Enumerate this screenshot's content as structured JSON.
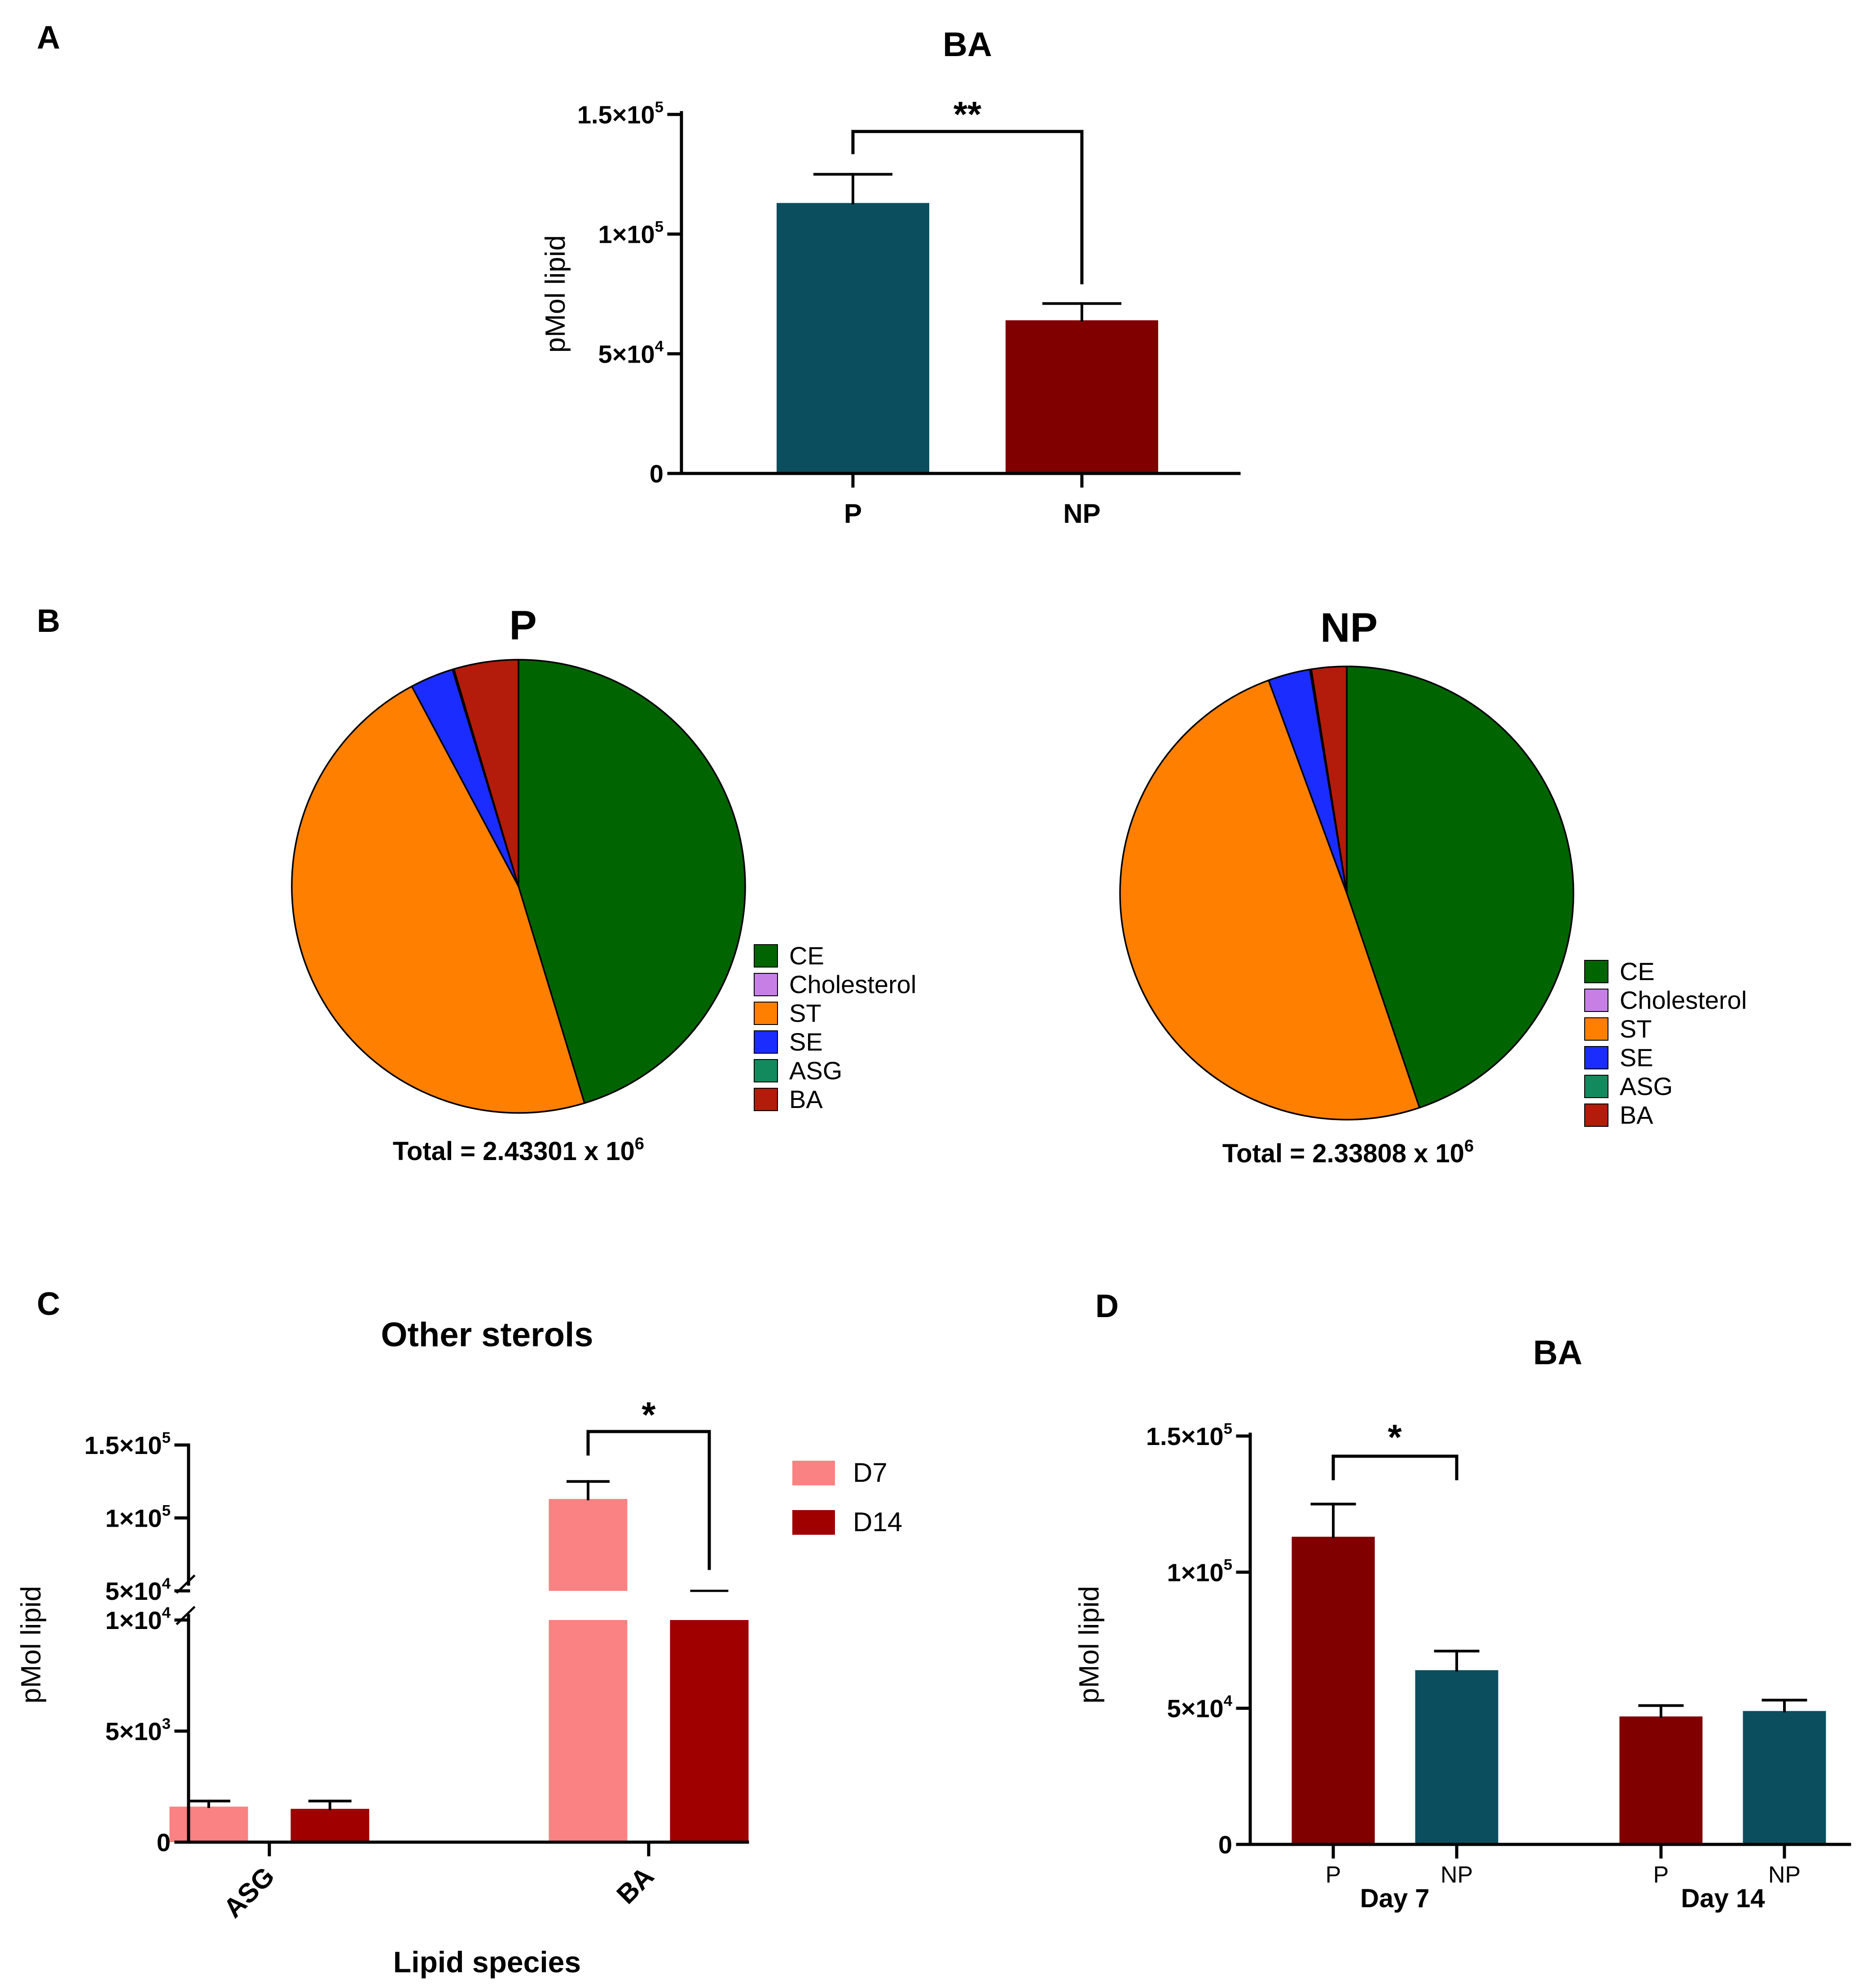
{
  "panel_letters": [
    "A",
    "B",
    "C",
    "D"
  ],
  "colors": {
    "teal": "#0b4f5e",
    "maroon": "#800000",
    "d7": "#fa8282",
    "d14": "#a00000",
    "CE": "#006400",
    "Cholesterol": "#c77fe6",
    "ST": "#ff7f00",
    "SE": "#1a2cff",
    "ASG": "#138a5d",
    "BA": "#b31b0a"
  },
  "chart_data": [
    {
      "panel": "A",
      "type": "bar",
      "title": "BA",
      "ylabel": "pMol lipid",
      "xlabel": "",
      "categories": [
        "P",
        "NP"
      ],
      "values": [
        113000,
        64000
      ],
      "errors": [
        12000,
        7000
      ],
      "bar_colors": [
        "teal",
        "maroon"
      ],
      "ylim": [
        0,
        150000
      ],
      "yticks": [
        {
          "value": 0,
          "mant": "0",
          "exp": ""
        },
        {
          "value": 50000,
          "mant": "5×10",
          "exp": "4"
        },
        {
          "value": 100000,
          "mant": "1×10",
          "exp": "5"
        },
        {
          "value": 150000,
          "mant": "1.5×10",
          "exp": "5"
        }
      ],
      "significance": {
        "from": 0,
        "to": 1,
        "label": "**"
      }
    },
    {
      "panel": "B",
      "type": "pie",
      "charts": [
        {
          "title": "P",
          "total_label": "Total = 2.43301 x 10",
          "total_exp": "6",
          "slices": [
            {
              "label": "CE",
              "value": 0.453
            },
            {
              "label": "Cholesterol",
              "value": 0.0
            },
            {
              "label": "ST",
              "value": 0.469
            },
            {
              "label": "SE",
              "value": 0.031
            },
            {
              "label": "ASG",
              "value": 0.001
            },
            {
              "label": "BA",
              "value": 0.046
            }
          ]
        },
        {
          "title": "NP",
          "total_label": "Total = 2.33808 x 10",
          "total_exp": "6",
          "slices": [
            {
              "label": "CE",
              "value": 0.448
            },
            {
              "label": "Cholesterol",
              "value": 0.0
            },
            {
              "label": "ST",
              "value": 0.496
            },
            {
              "label": "SE",
              "value": 0.03
            },
            {
              "label": "ASG",
              "value": 0.001
            },
            {
              "label": "BA",
              "value": 0.025
            }
          ]
        }
      ],
      "legend": [
        "CE",
        "Cholesterol",
        "ST",
        "SE",
        "ASG",
        "BA"
      ]
    },
    {
      "panel": "C",
      "type": "bar",
      "title": "Other sterols",
      "xlabel": "Lipid species",
      "ylabel": "pMol lipid",
      "categories": [
        "ASG",
        "BA"
      ],
      "series": [
        {
          "name": "D7",
          "values": [
            1600,
            113000
          ],
          "errors": [
            250,
            12000
          ],
          "color": "d7"
        },
        {
          "name": "D14",
          "values": [
            1500,
            50000
          ],
          "errors": [
            350,
            1000
          ],
          "color": "d14"
        }
      ],
      "axis_break": {
        "lower": [
          0,
          10000
        ],
        "upper": [
          50000,
          150000
        ]
      },
      "yticks": [
        {
          "value": 0,
          "mant": "0",
          "exp": ""
        },
        {
          "value": 5000,
          "mant": "5×10",
          "exp": "3"
        },
        {
          "value": 10000,
          "mant": "1×10",
          "exp": "4"
        },
        {
          "value": 50000,
          "mant": "5×10",
          "exp": "4"
        },
        {
          "value": 100000,
          "mant": "1×10",
          "exp": "5"
        },
        {
          "value": 150000,
          "mant": "1.5×10",
          "exp": "5"
        }
      ],
      "legend_position": "top-right",
      "significance": {
        "category": 1,
        "label": "*"
      }
    },
    {
      "panel": "D",
      "type": "bar",
      "title": "BA",
      "ylabel": "pMol lipid",
      "groups": [
        "Day 7",
        "Day 14"
      ],
      "categories": [
        "P",
        "NP",
        "P",
        "NP"
      ],
      "values": [
        113000,
        64000,
        47000,
        49000
      ],
      "errors": [
        12000,
        7000,
        4000,
        4000
      ],
      "bar_colors": [
        "maroon",
        "teal",
        "maroon",
        "teal"
      ],
      "ylim": [
        0,
        150000
      ],
      "yticks": [
        {
          "value": 0,
          "mant": "0",
          "exp": ""
        },
        {
          "value": 50000,
          "mant": "5×10",
          "exp": "4"
        },
        {
          "value": 100000,
          "mant": "1×10",
          "exp": "5"
        },
        {
          "value": 150000,
          "mant": "1.5×10",
          "exp": "5"
        }
      ],
      "significance": {
        "from": 0,
        "to": 1,
        "label": "*"
      }
    }
  ]
}
